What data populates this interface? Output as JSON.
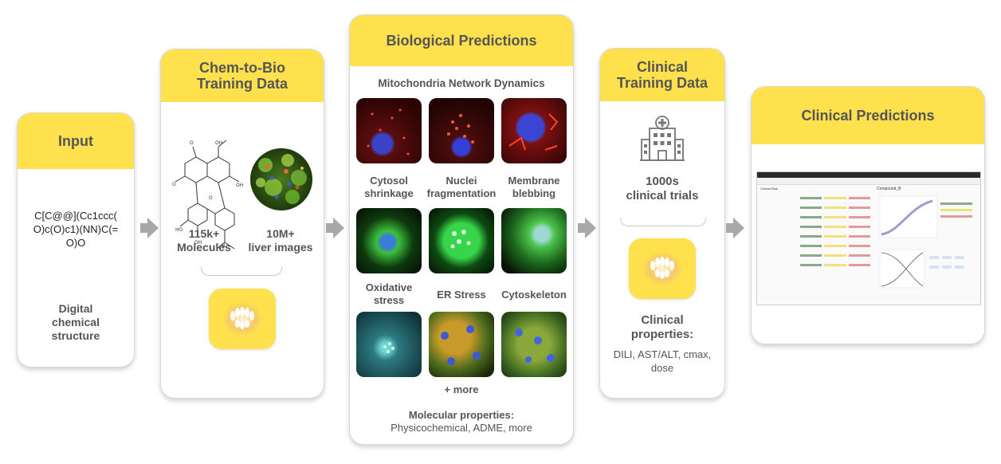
{
  "input": {
    "title": "Input",
    "smiles": "C[C@@](Cc1ccc(O)c(O)c1)(NN)C(=O)O",
    "smiles_lines": [
      "C[C@@](Cc1ccc(",
      "O)c(O)c1)(NN)C(=",
      "O)O"
    ],
    "caption_lines": [
      "Digital",
      "chemical",
      "structure"
    ]
  },
  "chem": {
    "title_lines": [
      "Chem-to-Bio",
      "Training Data"
    ],
    "molecules_count": "115k+",
    "molecules_label": "Molecules",
    "images_count": "10M+",
    "images_label": "liver images"
  },
  "bio": {
    "title": "Biological Predictions",
    "subtitle": "Mitochondria Network Dynamics",
    "row1_labels": [
      [
        "Cytosol",
        "shrinkage"
      ],
      [
        "Nuclei",
        "fragmentation"
      ],
      [
        "Membrane",
        "blebbing"
      ]
    ],
    "row2_labels": [
      [
        "Oxidative",
        "stress"
      ],
      [
        "ER Stress"
      ],
      [
        "Cytoskeleton"
      ]
    ],
    "more": "+ more",
    "mol_props_title": "Molecular properties:",
    "mol_props_list": "Physicochemical, ADME, more"
  },
  "clinical_training": {
    "title_lines": [
      "Clinical",
      "Training Data"
    ],
    "trials_lines": [
      "1000s",
      "clinical trials"
    ],
    "props_title_lines": [
      "Clinical",
      "properties:"
    ],
    "props_list_lines": [
      "DILI, AST/ALT, cmax,",
      "dose"
    ]
  },
  "clinical_predictions": {
    "title": "Clinical Predictions",
    "screenshot_title": "Compound_B",
    "screenshot_panel": "Clinical Risk"
  },
  "colors": {
    "accent": "#ffe14d",
    "text": "#555555",
    "arrow": "#a8a8a8"
  }
}
